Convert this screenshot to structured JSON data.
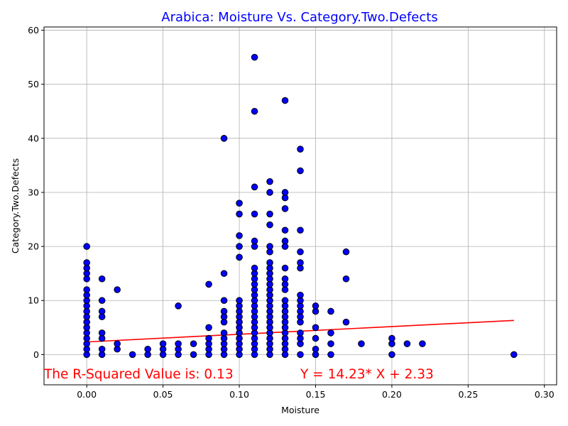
{
  "chart_data": {
    "type": "scatter",
    "title": "Arabica: Moisture Vs. Category.Two.Defects",
    "xlabel": "Moisture",
    "ylabel": "Category.Two.Defects",
    "xlim": [
      -0.028,
      0.308
    ],
    "ylim": [
      -5.6,
      60.6
    ],
    "xticks": [
      0.0,
      0.05,
      0.1,
      0.15,
      0.2,
      0.25,
      0.3
    ],
    "xtick_labels": [
      "0.00",
      "0.05",
      "0.10",
      "0.15",
      "0.20",
      "0.25",
      "0.30"
    ],
    "yticks": [
      0,
      10,
      20,
      30,
      40,
      50,
      60
    ],
    "ytick_labels": [
      "0",
      "10",
      "20",
      "30",
      "40",
      "50",
      "60"
    ],
    "grid": true,
    "colors": {
      "title": "#0000ff",
      "points": "#0000ff",
      "point_edge": "#000000",
      "fit_line": "#ff0000",
      "annotation": "#ff0000"
    },
    "points": [
      [
        0.0,
        0
      ],
      [
        0.0,
        1
      ],
      [
        0.0,
        2
      ],
      [
        0.0,
        3
      ],
      [
        0.0,
        4
      ],
      [
        0.0,
        5
      ],
      [
        0.0,
        6
      ],
      [
        0.0,
        7
      ],
      [
        0.0,
        8
      ],
      [
        0.0,
        9
      ],
      [
        0.0,
        10
      ],
      [
        0.0,
        11
      ],
      [
        0.0,
        12
      ],
      [
        0.0,
        14
      ],
      [
        0.0,
        15
      ],
      [
        0.0,
        16
      ],
      [
        0.0,
        17
      ],
      [
        0.0,
        20
      ],
      [
        0.01,
        0
      ],
      [
        0.01,
        1
      ],
      [
        0.01,
        3
      ],
      [
        0.01,
        4
      ],
      [
        0.01,
        7
      ],
      [
        0.01,
        8
      ],
      [
        0.01,
        10
      ],
      [
        0.01,
        14
      ],
      [
        0.02,
        1
      ],
      [
        0.02,
        2
      ],
      [
        0.02,
        12
      ],
      [
        0.03,
        0
      ],
      [
        0.04,
        0
      ],
      [
        0.04,
        1
      ],
      [
        0.05,
        0
      ],
      [
        0.05,
        1
      ],
      [
        0.05,
        2
      ],
      [
        0.06,
        0
      ],
      [
        0.06,
        1
      ],
      [
        0.06,
        2
      ],
      [
        0.06,
        9
      ],
      [
        0.07,
        0
      ],
      [
        0.07,
        2
      ],
      [
        0.08,
        0
      ],
      [
        0.08,
        1
      ],
      [
        0.08,
        2
      ],
      [
        0.08,
        3
      ],
      [
        0.08,
        5
      ],
      [
        0.08,
        13
      ],
      [
        0.09,
        0
      ],
      [
        0.09,
        1
      ],
      [
        0.09,
        2
      ],
      [
        0.09,
        3
      ],
      [
        0.09,
        4
      ],
      [
        0.09,
        6
      ],
      [
        0.09,
        7
      ],
      [
        0.09,
        8
      ],
      [
        0.09,
        10
      ],
      [
        0.09,
        15
      ],
      [
        0.09,
        40
      ],
      [
        0.1,
        0
      ],
      [
        0.1,
        1
      ],
      [
        0.1,
        2
      ],
      [
        0.1,
        3
      ],
      [
        0.1,
        4
      ],
      [
        0.1,
        5
      ],
      [
        0.1,
        6
      ],
      [
        0.1,
        7
      ],
      [
        0.1,
        8
      ],
      [
        0.1,
        9
      ],
      [
        0.1,
        10
      ],
      [
        0.1,
        18
      ],
      [
        0.1,
        20
      ],
      [
        0.1,
        22
      ],
      [
        0.1,
        26
      ],
      [
        0.1,
        28
      ],
      [
        0.11,
        0
      ],
      [
        0.11,
        1
      ],
      [
        0.11,
        2
      ],
      [
        0.11,
        3
      ],
      [
        0.11,
        4
      ],
      [
        0.11,
        5
      ],
      [
        0.11,
        6
      ],
      [
        0.11,
        7
      ],
      [
        0.11,
        8
      ],
      [
        0.11,
        9
      ],
      [
        0.11,
        10
      ],
      [
        0.11,
        11
      ],
      [
        0.11,
        12
      ],
      [
        0.11,
        13
      ],
      [
        0.11,
        14
      ],
      [
        0.11,
        15
      ],
      [
        0.11,
        16
      ],
      [
        0.11,
        20
      ],
      [
        0.11,
        21
      ],
      [
        0.11,
        26
      ],
      [
        0.11,
        31
      ],
      [
        0.11,
        45
      ],
      [
        0.11,
        55
      ],
      [
        0.12,
        0
      ],
      [
        0.12,
        1
      ],
      [
        0.12,
        2
      ],
      [
        0.12,
        3
      ],
      [
        0.12,
        4
      ],
      [
        0.12,
        5
      ],
      [
        0.12,
        6
      ],
      [
        0.12,
        7
      ],
      [
        0.12,
        8
      ],
      [
        0.12,
        9
      ],
      [
        0.12,
        10
      ],
      [
        0.12,
        11
      ],
      [
        0.12,
        12
      ],
      [
        0.12,
        13
      ],
      [
        0.12,
        14
      ],
      [
        0.12,
        15
      ],
      [
        0.12,
        16
      ],
      [
        0.12,
        17
      ],
      [
        0.12,
        19
      ],
      [
        0.12,
        20
      ],
      [
        0.12,
        24
      ],
      [
        0.12,
        26
      ],
      [
        0.12,
        30
      ],
      [
        0.12,
        32
      ],
      [
        0.13,
        0
      ],
      [
        0.13,
        1
      ],
      [
        0.13,
        2
      ],
      [
        0.13,
        3
      ],
      [
        0.13,
        4
      ],
      [
        0.13,
        5
      ],
      [
        0.13,
        6
      ],
      [
        0.13,
        7
      ],
      [
        0.13,
        8
      ],
      [
        0.13,
        9
      ],
      [
        0.13,
        10
      ],
      [
        0.13,
        12
      ],
      [
        0.13,
        13
      ],
      [
        0.13,
        14
      ],
      [
        0.13,
        16
      ],
      [
        0.13,
        20
      ],
      [
        0.13,
        21
      ],
      [
        0.13,
        23
      ],
      [
        0.13,
        27
      ],
      [
        0.13,
        29
      ],
      [
        0.13,
        30
      ],
      [
        0.13,
        47
      ],
      [
        0.14,
        0
      ],
      [
        0.14,
        2
      ],
      [
        0.14,
        3
      ],
      [
        0.14,
        4
      ],
      [
        0.14,
        6
      ],
      [
        0.14,
        7
      ],
      [
        0.14,
        8
      ],
      [
        0.14,
        9
      ],
      [
        0.14,
        10
      ],
      [
        0.14,
        11
      ],
      [
        0.14,
        16
      ],
      [
        0.14,
        17
      ],
      [
        0.14,
        19
      ],
      [
        0.14,
        23
      ],
      [
        0.14,
        34
      ],
      [
        0.14,
        38
      ],
      [
        0.15,
        0
      ],
      [
        0.15,
        1
      ],
      [
        0.15,
        3
      ],
      [
        0.15,
        5
      ],
      [
        0.15,
        8
      ],
      [
        0.15,
        9
      ],
      [
        0.16,
        0
      ],
      [
        0.16,
        2
      ],
      [
        0.16,
        4
      ],
      [
        0.16,
        8
      ],
      [
        0.17,
        6
      ],
      [
        0.17,
        14
      ],
      [
        0.17,
        19
      ],
      [
        0.18,
        2
      ],
      [
        0.2,
        0
      ],
      [
        0.2,
        2
      ],
      [
        0.2,
        3
      ],
      [
        0.21,
        2
      ],
      [
        0.22,
        2
      ],
      [
        0.28,
        0
      ]
    ],
    "fit_line": {
      "slope": 14.23,
      "intercept": 2.33,
      "x_range": [
        0.0,
        0.28
      ]
    },
    "annotations": {
      "r_squared": "The R-Squared Value is: 0.13",
      "equation": "Y = 14.23* X + 2.33"
    }
  }
}
